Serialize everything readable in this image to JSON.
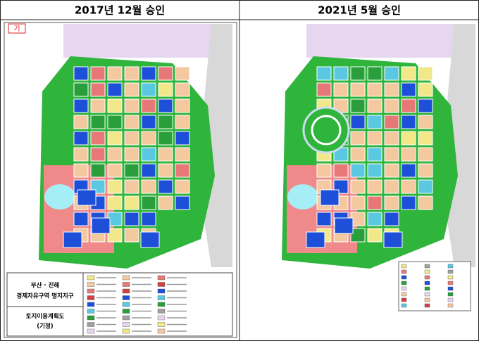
{
  "header": {
    "left_title": "2017년 12월 승인",
    "right_title": "2021년 5월 승인"
  },
  "left_map": {
    "corner_label": "기",
    "legend_title": [
      "부산 · 진해",
      "경제자유구역 명지지구"
    ],
    "legend_subtitle": [
      "토지이용계획도",
      "(기정)"
    ]
  }
}
